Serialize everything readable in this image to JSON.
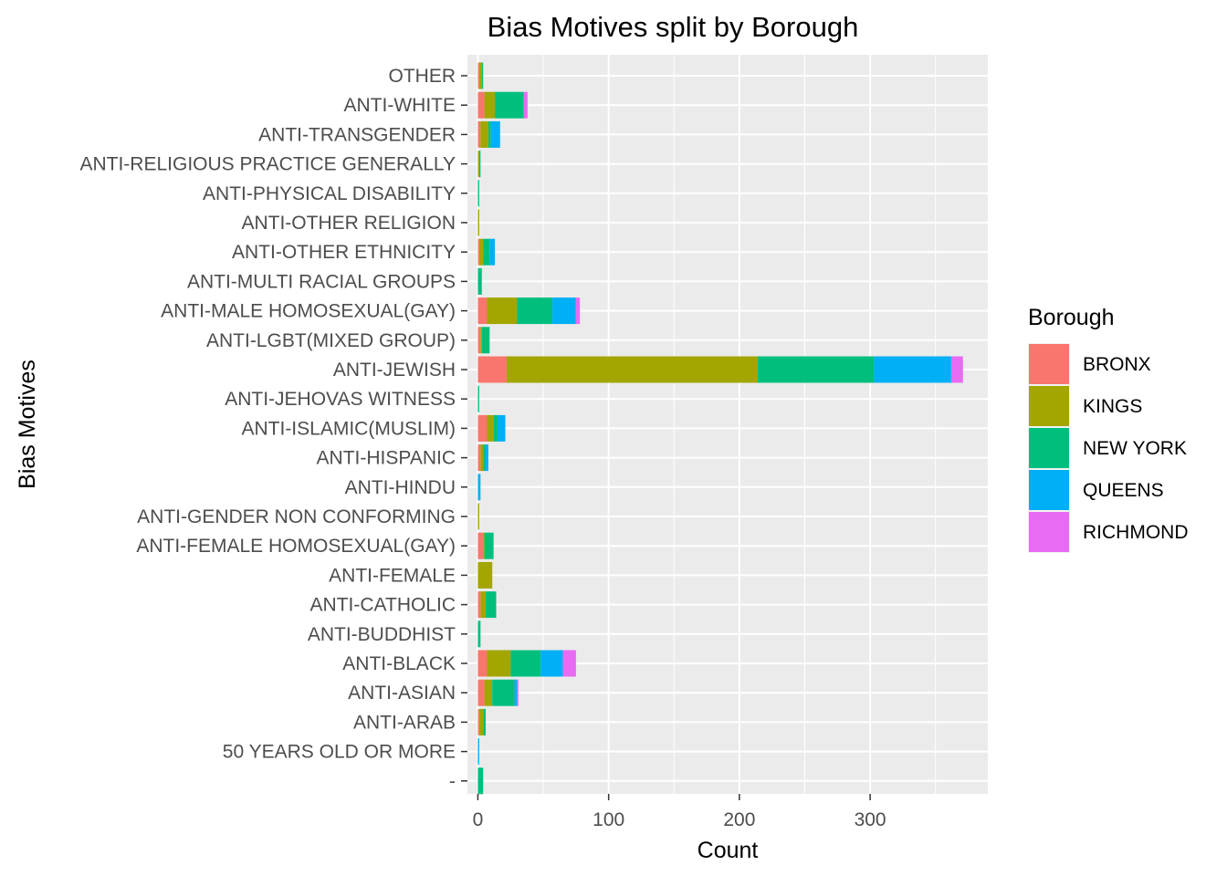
{
  "chart_data": {
    "type": "bar",
    "orientation": "horizontal",
    "stacked": true,
    "title": "Bias Motives split by Borough",
    "xlabel": "Count",
    "ylabel": "Bias Motives",
    "xlim": [
      -8,
      390
    ],
    "xticks": [
      0,
      100,
      200,
      300
    ],
    "legend_title": "Borough",
    "legend_position": "right",
    "grid": true,
    "categories": [
      "-",
      "50 YEARS OLD OR MORE",
      "ANTI-ARAB",
      "ANTI-ASIAN",
      "ANTI-BLACK",
      "ANTI-BUDDHIST",
      "ANTI-CATHOLIC",
      "ANTI-FEMALE",
      "ANTI-FEMALE HOMOSEXUAL(GAY)",
      "ANTI-GENDER NON CONFORMING",
      "ANTI-HINDU",
      "ANTI-HISPANIC",
      "ANTI-ISLAMIC(MUSLIM)",
      "ANTI-JEHOVAS WITNESS",
      "ANTI-JEWISH",
      "ANTI-LGBT(MIXED GROUP)",
      "ANTI-MALE HOMOSEXUAL(GAY)",
      "ANTI-MULTI RACIAL GROUPS",
      "ANTI-OTHER ETHNICITY",
      "ANTI-OTHER RELIGION",
      "ANTI-PHYSICAL DISABILITY",
      "ANTI-RELIGIOUS PRACTICE GENERALLY",
      "ANTI-TRANSGENDER",
      "ANTI-WHITE",
      "OTHER"
    ],
    "series": [
      {
        "name": "BRONX",
        "color": "#F8766D",
        "values": [
          0,
          0,
          1,
          5,
          7,
          0,
          2,
          0,
          4,
          0,
          0,
          2,
          7,
          0,
          22,
          2,
          7,
          0,
          1,
          0,
          0,
          0,
          2,
          5,
          1
        ]
      },
      {
        "name": "KINGS",
        "color": "#A3A500",
        "values": [
          0,
          0,
          3,
          6,
          18,
          0,
          4,
          11,
          1,
          1,
          0,
          2,
          5,
          0,
          192,
          1,
          23,
          0,
          3,
          1,
          0,
          1,
          6,
          8,
          2
        ]
      },
      {
        "name": "NEW YORK",
        "color": "#00BF7D",
        "values": [
          4,
          0,
          2,
          17,
          23,
          2,
          8,
          0,
          7,
          0,
          0,
          2,
          3,
          1,
          89,
          6,
          27,
          3,
          5,
          0,
          1,
          1,
          2,
          22,
          1
        ]
      },
      {
        "name": "QUEENS",
        "color": "#00B0F6",
        "values": [
          0,
          1,
          0,
          2,
          17,
          0,
          0,
          0,
          0,
          0,
          2,
          2,
          6,
          0,
          59,
          0,
          18,
          0,
          4,
          0,
          0,
          0,
          7,
          0,
          0
        ]
      },
      {
        "name": "RICHMOND",
        "color": "#E76BF3",
        "values": [
          0,
          0,
          0,
          1,
          10,
          0,
          0,
          0,
          0,
          0,
          0,
          0,
          0,
          0,
          9,
          0,
          3,
          0,
          0,
          0,
          0,
          0,
          0,
          3,
          0
        ]
      }
    ]
  }
}
